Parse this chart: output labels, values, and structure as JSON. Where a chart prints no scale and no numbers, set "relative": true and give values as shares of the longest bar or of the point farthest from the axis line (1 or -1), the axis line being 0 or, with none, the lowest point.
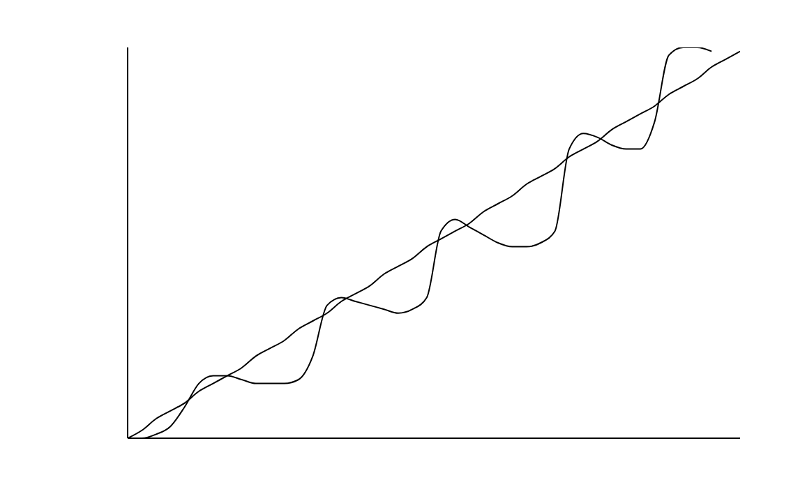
{
  "chart_data": {
    "type": "line",
    "relative": true,
    "grid": false,
    "marker": "none",
    "line_style": "solid",
    "categories": [
      null,
      null,
      null,
      null,
      null,
      null,
      null,
      null,
      null,
      null,
      null,
      null,
      null,
      null,
      null,
      null,
      null,
      null,
      null,
      null,
      null,
      null,
      null,
      null,
      null,
      null,
      null,
      null,
      null,
      null,
      null,
      null,
      null,
      null,
      null,
      null,
      null,
      null,
      null,
      null,
      null,
      null,
      null,
      null
    ],
    "series": [
      {
        "color": "#000000",
        "values": [
          0,
          0.02,
          0.05,
          0.07,
          0.09,
          0.12,
          0.14,
          0.16,
          0.18,
          0.21,
          0.23,
          0.25,
          0.28,
          0.3,
          0.32,
          0.35,
          0.37,
          0.39,
          0.42,
          0.44,
          0.46,
          0.49,
          0.51,
          0.53,
          0.55,
          0.58,
          0.6,
          0.62,
          0.65,
          0.67,
          0.69,
          0.72,
          0.74,
          0.76,
          0.79,
          0.81,
          0.83,
          0.85,
          0.88,
          0.9,
          0.92,
          0.95,
          0.97,
          0.99
        ]
      },
      {
        "color": "#000000",
        "values": [
          0,
          0,
          0.01,
          0.03,
          0.08,
          0.14,
          0.16,
          0.16,
          0.15,
          0.14,
          0.14,
          0.14,
          0.15,
          0.21,
          0.34,
          0.36,
          0.35,
          0.34,
          0.33,
          0.32,
          0.33,
          0.36,
          0.53,
          0.56,
          0.54,
          0.52,
          0.5,
          0.49,
          0.49,
          0.5,
          0.53,
          0.74,
          0.78,
          0.77,
          0.75,
          0.74,
          0.74,
          0.81,
          0.98,
          1.0,
          1.0,
          0.99,
          null,
          null
        ]
      }
    ]
  }
}
